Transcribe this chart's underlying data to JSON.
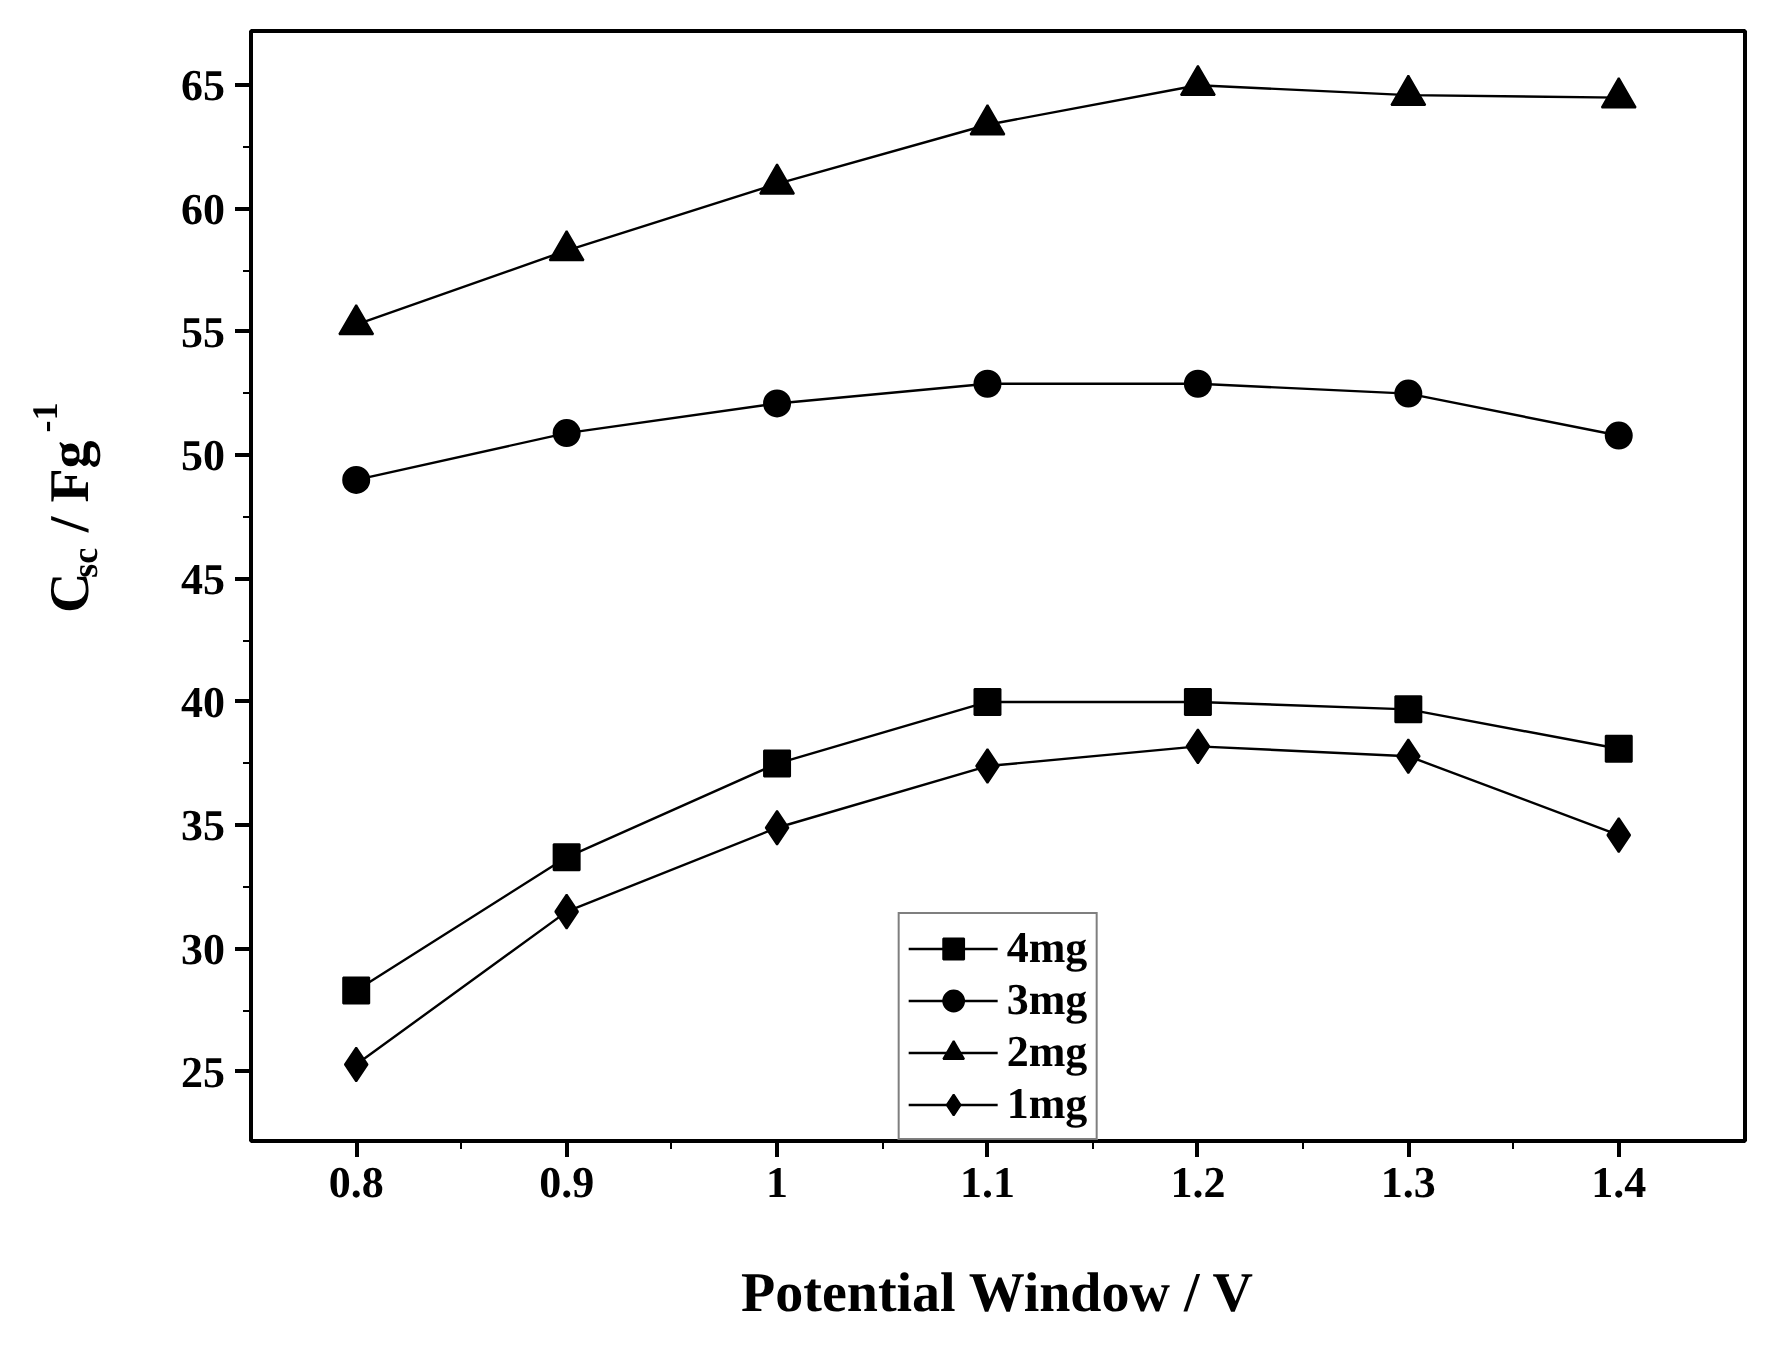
{
  "chart_data": {
    "type": "line",
    "xlabel": "Potential Window / V",
    "ylabel": "C$_{sc}$ / Fg$^{-1}$",
    "x": [
      0.8,
      0.9,
      1,
      1.1,
      1.2,
      1.3,
      1.4
    ],
    "series": [
      {
        "name": "4mg",
        "color": "#000000",
        "marker": "square",
        "values": [
          28.3,
          33.7,
          37.5,
          40.0,
          40.0,
          39.7,
          38.1
        ]
      },
      {
        "name": "3mg",
        "color": "#000000",
        "marker": "circle",
        "values": [
          49.0,
          50.9,
          52.1,
          52.9,
          52.9,
          52.5,
          50.8
        ]
      },
      {
        "name": "2mg",
        "color": "#000000",
        "marker": "triangle",
        "values": [
          55.3,
          58.3,
          61.0,
          63.4,
          65.0,
          64.6,
          64.5
        ]
      },
      {
        "name": "1mg",
        "color": "#000000",
        "marker": "diamond",
        "values": [
          25.3,
          31.5,
          34.9,
          37.4,
          38.2,
          37.8,
          34.6
        ]
      }
    ],
    "xlim": [
      0.75,
      1.46
    ],
    "ylim": [
      22.2,
      67.2
    ],
    "xticks": [
      0.8,
      0.9,
      1,
      1.1,
      1.2,
      1.3,
      1.4
    ],
    "yticks": [
      25,
      30,
      35,
      40,
      45,
      50,
      55,
      60,
      65
    ],
    "grid": false,
    "legend": "bottom",
    "line_style": "solid"
  }
}
